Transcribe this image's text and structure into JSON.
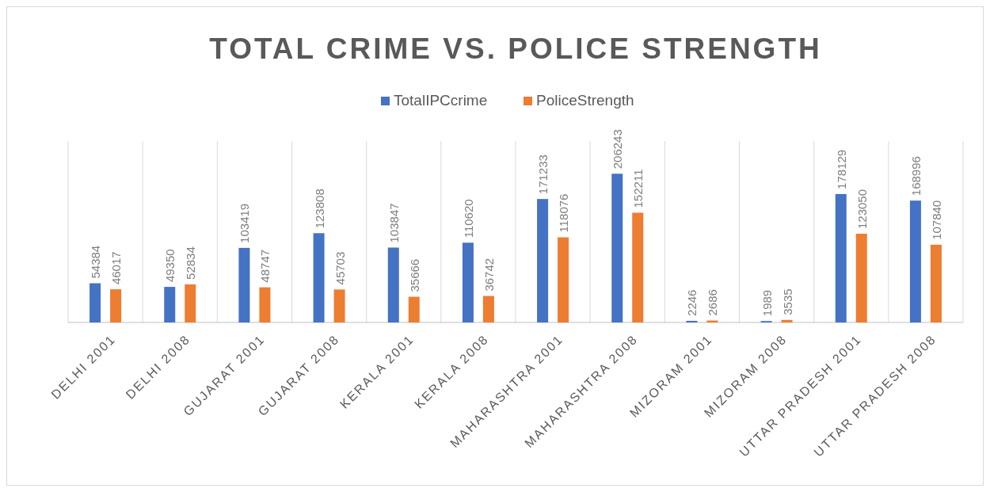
{
  "chart_data": {
    "type": "bar",
    "title": "TOTAL CRIME VS. POLICE STRENGTH",
    "categories": [
      "DELHI 2001",
      "DELHI 2008",
      "GUJARAT 2001",
      "GUJARAT 2008",
      "KERALA 2001",
      "KERALA 2008",
      "MAHARASHTRA 2001",
      "MAHARASHTRA 2008",
      "MIZORAM 2001",
      "MIZORAM 2008",
      "UTTAR PRADESH 2001",
      "UTTAR PRADESH 2008"
    ],
    "series": [
      {
        "name": "TotalIPCcrime",
        "color": "#4472c4",
        "values": [
          54384,
          49350,
          103419,
          123808,
          103847,
          110620,
          171233,
          206243,
          2246,
          1989,
          178129,
          168996
        ]
      },
      {
        "name": "PoliceStrength",
        "color": "#ed7d31",
        "values": [
          46017,
          52834,
          48747,
          45703,
          35666,
          36742,
          118076,
          152211,
          2686,
          3535,
          123050,
          107840
        ]
      }
    ],
    "data_labels": true,
    "grid": "x",
    "legend": "top"
  }
}
